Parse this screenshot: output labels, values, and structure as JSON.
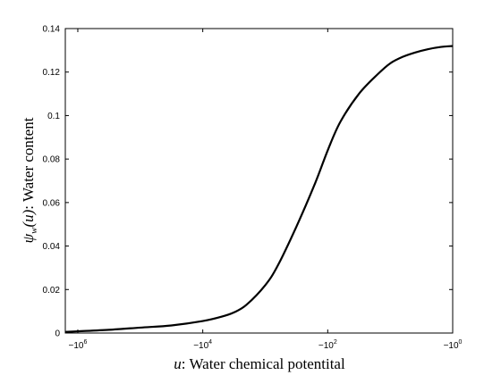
{
  "chart_data": {
    "type": "line",
    "xscale": "symmetric-log (negative values)",
    "xlabel": {
      "var": "u",
      "text": ": Water chemical potentital"
    },
    "ylabel": {
      "var": "ψ",
      "sub": "w",
      "arg": "(u)",
      "text": ": Water content"
    },
    "ylim": [
      0,
      0.14
    ],
    "yticks": [
      "0",
      "0.02",
      "0.04",
      "0.06",
      "0.08",
      "0.1",
      "0.12",
      "0.14"
    ],
    "ytick_values": [
      0,
      0.02,
      0.04,
      0.06,
      0.08,
      0.1,
      0.12,
      0.14
    ],
    "xlim": [
      -6.2,
      0
    ],
    "xtick_values": [
      -6,
      -4,
      -2,
      0
    ],
    "xticks": [
      {
        "base": "−10",
        "exp": "6"
      },
      {
        "base": "−10",
        "exp": "4"
      },
      {
        "base": "−10",
        "exp": "2"
      },
      {
        "base": "−10",
        "exp": "0"
      }
    ],
    "series": [
      {
        "x_log10_abs_u": [
          -6.2,
          -6.0,
          -5.5,
          -5.0,
          -4.5,
          -4.0,
          -3.7,
          -3.5,
          -3.3,
          -3.0,
          -2.8,
          -2.5,
          -2.2,
          -2.0,
          -1.8,
          -1.5,
          -1.2,
          -1.0,
          -0.8,
          -0.6,
          -0.4,
          -0.2,
          0.0
        ],
        "y": [
          0.0005,
          0.0008,
          0.0015,
          0.0025,
          0.0035,
          0.0055,
          0.0075,
          0.0095,
          0.013,
          0.022,
          0.031,
          0.049,
          0.069,
          0.084,
          0.097,
          0.11,
          0.119,
          0.124,
          0.127,
          0.129,
          0.1305,
          0.1315,
          0.132
        ],
        "color": "#000000"
      }
    ]
  }
}
